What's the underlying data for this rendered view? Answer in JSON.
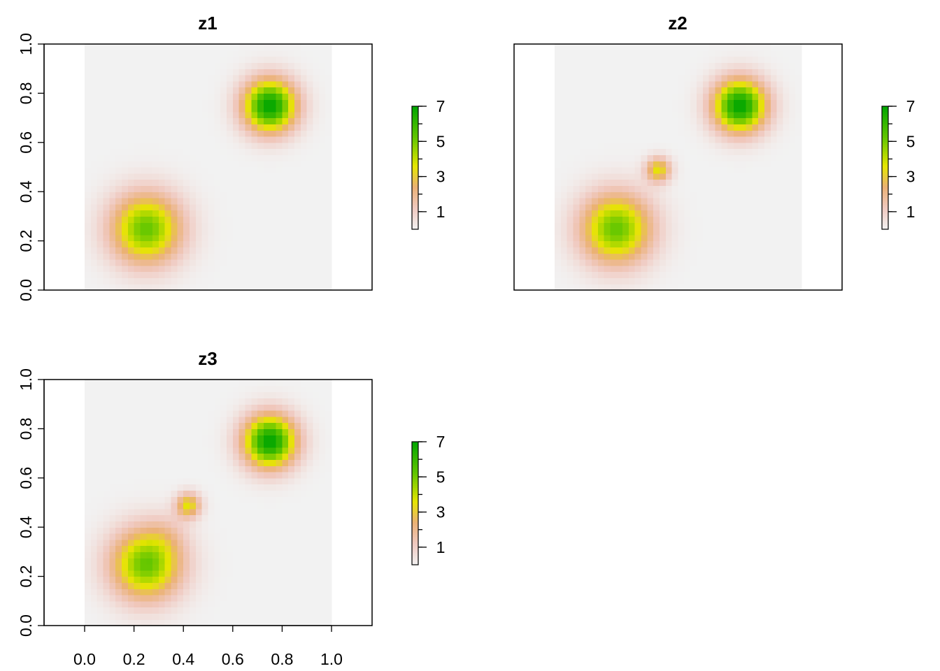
{
  "chart_data": [
    {
      "type": "heatmap",
      "title": "z1",
      "xlim": [
        0,
        1
      ],
      "ylim": [
        0,
        1
      ],
      "x_ticks": [],
      "x_tick_labels": [],
      "y_ticks": [
        0,
        0.2,
        0.4,
        0.6,
        0.8,
        1.0
      ],
      "y_tick_labels": [
        "0.0",
        "0.2",
        "0.4",
        "0.6",
        "0.8",
        "1.0"
      ],
      "grid_size": 40,
      "value_range": [
        0,
        7
      ],
      "bumps": [
        {
          "x": 0.25,
          "y": 0.25,
          "peak": 5.2,
          "sigma": 0.1
        },
        {
          "x": 0.75,
          "y": 0.75,
          "peak": 7.0,
          "sigma": 0.075
        }
      ],
      "legend": {
        "ticks": [
          1,
          3,
          5,
          7
        ],
        "tick_labels": [
          "1",
          "3",
          "5",
          "7"
        ],
        "range": [
          0,
          7
        ],
        "placement": "right"
      }
    },
    {
      "type": "heatmap",
      "title": "z2",
      "xlim": [
        0,
        1
      ],
      "ylim": [
        0,
        1
      ],
      "x_ticks": [],
      "x_tick_labels": [],
      "y_ticks": [],
      "y_tick_labels": [],
      "grid_size": 40,
      "value_range": [
        0,
        7
      ],
      "bumps": [
        {
          "x": 0.25,
          "y": 0.25,
          "peak": 5.2,
          "sigma": 0.1
        },
        {
          "x": 0.75,
          "y": 0.75,
          "peak": 7.0,
          "sigma": 0.075
        },
        {
          "x": 0.42,
          "y": 0.49,
          "peak": 3.5,
          "sigma": 0.035
        }
      ],
      "legend": {
        "ticks": [
          1,
          3,
          5,
          7
        ],
        "tick_labels": [
          "1",
          "3",
          "5",
          "7"
        ],
        "range": [
          0,
          7
        ],
        "placement": "right"
      }
    },
    {
      "type": "heatmap",
      "title": "z3",
      "xlim": [
        0,
        1
      ],
      "ylim": [
        0,
        1
      ],
      "x_ticks": [
        0,
        0.2,
        0.4,
        0.6,
        0.8,
        1.0
      ],
      "x_tick_labels": [
        "0.0",
        "0.2",
        "0.4",
        "0.6",
        "0.8",
        "1.0"
      ],
      "y_ticks": [
        0,
        0.2,
        0.4,
        0.6,
        0.8,
        1.0
      ],
      "y_tick_labels": [
        "0.0",
        "0.2",
        "0.4",
        "0.6",
        "0.8",
        "1.0"
      ],
      "grid_size": 40,
      "value_range": [
        0,
        7
      ],
      "bumps": [
        {
          "x": 0.25,
          "y": 0.25,
          "peak": 5.2,
          "sigma": 0.1
        },
        {
          "x": 0.75,
          "y": 0.75,
          "peak": 7.0,
          "sigma": 0.075
        },
        {
          "x": 0.42,
          "y": 0.49,
          "peak": 3.5,
          "sigma": 0.035
        },
        {
          "x": 0.33,
          "y": 0.37,
          "peak": 0.6,
          "sigma": 0.06
        }
      ],
      "legend": {
        "ticks": [
          1,
          3,
          5,
          7
        ],
        "tick_labels": [
          "1",
          "3",
          "5",
          "7"
        ],
        "range": [
          0,
          7
        ],
        "placement": "right"
      }
    }
  ],
  "colormap": {
    "name": "terrain-reversed",
    "stops": [
      "#f2f2f2",
      "#f0c9c0",
      "#ebb175",
      "#e6e600",
      "#63c600",
      "#00a600"
    ],
    "stop_values": [
      0,
      1.2,
      2.4,
      3.6,
      5.2,
      7
    ]
  }
}
